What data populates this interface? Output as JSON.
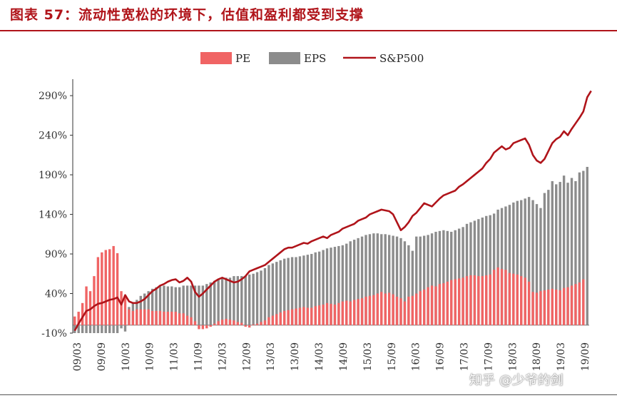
{
  "title": "图表 57：流动性宽松的环境下，估值和盈利都受到支撑",
  "watermark": "知乎 @少爷的剑",
  "colors": {
    "pe": "#f06464",
    "eps": "#8c8c8c",
    "sp500": "#b0141a",
    "title": "#b0141a"
  },
  "chart_data": {
    "type": "bar",
    "title": "",
    "xlabel": "",
    "ylabel": "",
    "ylim": [
      -10,
      300
    ],
    "yticks": [
      "-10%",
      "40%",
      "90%",
      "140%",
      "190%",
      "240%",
      "290%"
    ],
    "ytick_values": [
      -10,
      40,
      90,
      140,
      190,
      240,
      290
    ],
    "xticks": [
      "09/03",
      "09/09",
      "10/03",
      "10/09",
      "11/03",
      "11/09",
      "12/03",
      "12/09",
      "13/03",
      "13/09",
      "14/03",
      "14/09",
      "15/03",
      "15/09",
      "16/03",
      "16/09",
      "17/03",
      "17/09",
      "18/03",
      "18/09",
      "19/03",
      "19/09"
    ],
    "grid": false,
    "legend_position": "top",
    "legend": [
      "PE",
      "EPS",
      "S&P500"
    ],
    "series": [
      {
        "name": "PE",
        "kind": "bar",
        "values": [
          11,
          17,
          28,
          49,
          43,
          62,
          86,
          92,
          95,
          96,
          100,
          91,
          43,
          38,
          20,
          18,
          20,
          20,
          20,
          20,
          18,
          18,
          18,
          17,
          17,
          17,
          17,
          15,
          15,
          12,
          10,
          5,
          -5,
          -5,
          -4,
          -2,
          2,
          5,
          7,
          8,
          7,
          6,
          4,
          3,
          -2,
          -3,
          1,
          2,
          4,
          6,
          10,
          12,
          14,
          16,
          18,
          19,
          20,
          21,
          22,
          23,
          22,
          22,
          24,
          25,
          26,
          28,
          27,
          26,
          28,
          30,
          31,
          30,
          32,
          33,
          34,
          36,
          37,
          38,
          40,
          42,
          40,
          41,
          39,
          36,
          34,
          30,
          36,
          37,
          40,
          43,
          45,
          48,
          50,
          49,
          52,
          53,
          55,
          57,
          58,
          59,
          60,
          62,
          63,
          63,
          62,
          62,
          63,
          64,
          70,
          73,
          71,
          70,
          66,
          65,
          64,
          62,
          60,
          55,
          42,
          41,
          43,
          44,
          45,
          46,
          45,
          44,
          47,
          48,
          50,
          52,
          54,
          58
        ]
      },
      {
        "name": "EPS",
        "kind": "bar",
        "values": [
          -10,
          -10,
          -10,
          -10,
          -10,
          -10,
          -10,
          -10,
          -10,
          -10,
          -10,
          -10,
          -4,
          -8,
          23,
          28,
          32,
          37,
          40,
          43,
          46,
          48,
          49,
          50,
          49,
          49,
          48,
          48,
          50,
          50,
          50,
          50,
          50,
          50,
          52,
          54,
          56,
          58,
          60,
          60,
          60,
          62,
          62,
          62,
          62,
          64,
          65,
          67,
          69,
          72,
          76,
          78,
          80,
          82,
          84,
          85,
          86,
          86,
          87,
          88,
          89,
          90,
          92,
          93,
          95,
          97,
          98,
          99,
          100,
          101,
          103,
          106,
          108,
          110,
          112,
          114,
          115,
          116,
          116,
          115,
          115,
          114,
          113,
          112,
          110,
          106,
          101,
          94,
          112,
          112,
          113,
          114,
          116,
          118,
          119,
          120,
          119,
          118,
          120,
          122,
          124,
          128,
          130,
          132,
          134,
          136,
          138,
          139,
          141,
          146,
          148,
          150,
          152,
          155,
          157,
          158,
          160,
          162,
          158,
          153,
          148,
          167,
          171,
          182,
          178,
          181,
          189,
          180,
          186,
          182,
          193,
          195,
          200
        ]
      },
      {
        "name": "S&P500",
        "kind": "line",
        "values": [
          -7,
          2,
          10,
          18,
          20,
          24,
          27,
          28,
          30,
          32,
          33,
          35,
          26,
          38,
          30,
          28,
          28,
          30,
          33,
          38,
          43,
          46,
          50,
          52,
          55,
          57,
          58,
          54,
          56,
          60,
          55,
          42,
          36,
          40,
          45,
          50,
          55,
          58,
          60,
          58,
          56,
          54,
          55,
          58,
          62,
          68,
          70,
          72,
          74,
          76,
          80,
          84,
          88,
          92,
          96,
          98,
          98,
          100,
          102,
          104,
          103,
          106,
          108,
          110,
          112,
          110,
          114,
          116,
          118,
          122,
          124,
          126,
          128,
          132,
          134,
          136,
          140,
          142,
          144,
          146,
          145,
          144,
          140,
          130,
          120,
          124,
          130,
          138,
          142,
          148,
          154,
          152,
          150,
          155,
          160,
          164,
          166,
          168,
          170,
          175,
          178,
          182,
          186,
          190,
          194,
          198,
          205,
          210,
          218,
          222,
          226,
          222,
          224,
          230,
          232,
          234,
          236,
          228,
          215,
          208,
          205,
          210,
          220,
          230,
          235,
          238,
          245,
          240,
          248,
          255,
          262,
          270,
          288,
          296
        ]
      }
    ]
  }
}
